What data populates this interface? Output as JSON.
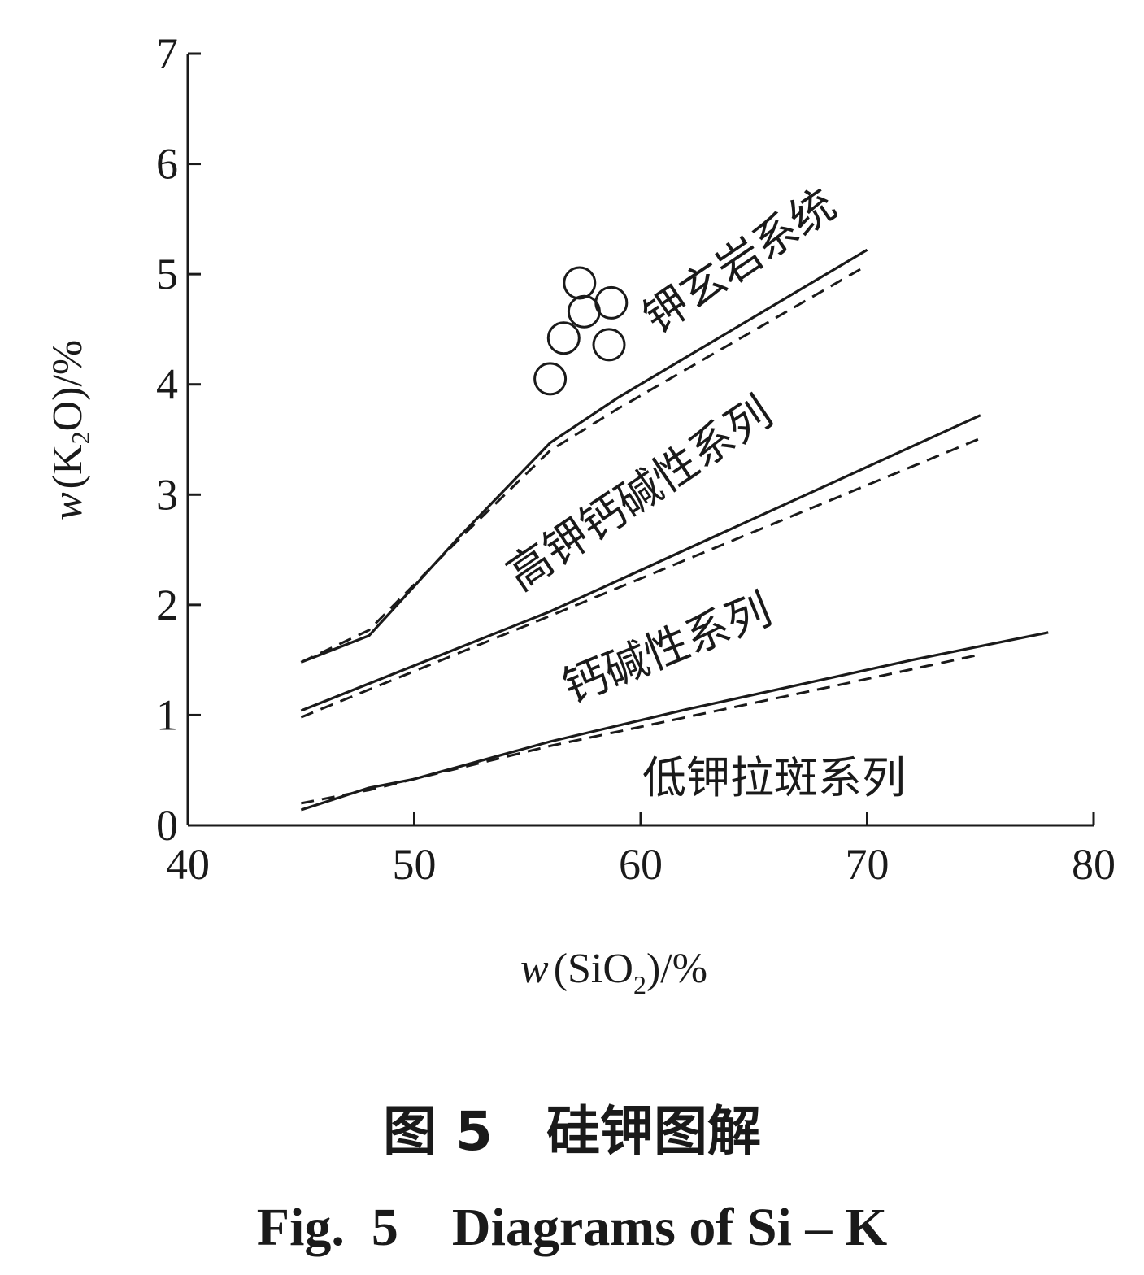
{
  "chart_data": {
    "type": "line",
    "xlabel": "w(SiO2)/%",
    "ylabel": "w(K2O)/%",
    "xlim": [
      40,
      80
    ],
    "ylim": [
      0,
      7
    ],
    "x_ticks": [
      "40",
      "50",
      "60",
      "70",
      "80"
    ],
    "y_ticks": [
      "0",
      "1",
      "2",
      "3",
      "4",
      "5",
      "6",
      "7"
    ],
    "grid": false,
    "boundaries": [
      {
        "solid": [
          [
            45,
            1.48
          ],
          [
            48,
            1.72
          ],
          [
            52,
            2.62
          ],
          [
            56,
            3.47
          ],
          [
            59,
            3.88
          ],
          [
            70,
            5.22
          ]
        ],
        "dashed": [
          [
            45,
            1.48
          ],
          [
            48,
            1.77
          ],
          [
            52,
            2.6
          ],
          [
            56,
            3.4
          ],
          [
            59,
            3.78
          ],
          [
            70,
            5.08
          ]
        ]
      },
      {
        "solid": [
          [
            45,
            1.04
          ],
          [
            56,
            1.94
          ],
          [
            75,
            3.72
          ]
        ],
        "dashed": [
          [
            45,
            0.98
          ],
          [
            56,
            1.9
          ],
          [
            75,
            3.51
          ]
        ]
      },
      {
        "solid": [
          [
            45,
            0.14
          ],
          [
            48,
            0.34
          ],
          [
            50,
            0.42
          ],
          [
            56,
            0.76
          ],
          [
            62,
            1.05
          ],
          [
            72,
            1.5
          ],
          [
            78,
            1.75
          ]
        ],
        "dashed": [
          [
            45,
            0.2
          ],
          [
            48,
            0.32
          ],
          [
            56,
            0.72
          ],
          [
            62,
            0.98
          ],
          [
            68,
            1.24
          ],
          [
            75,
            1.55
          ]
        ]
      }
    ],
    "points": [
      {
        "x": 57.3,
        "y": 4.92
      },
      {
        "x": 58.7,
        "y": 4.74
      },
      {
        "x": 57.5,
        "y": 4.66
      },
      {
        "x": 56.6,
        "y": 4.42
      },
      {
        "x": 58.6,
        "y": 4.36
      },
      {
        "x": 56.0,
        "y": 4.05
      }
    ],
    "region_labels": [
      "钾玄岩系统",
      "高钾钙碱性系列",
      "钙碱性系列",
      "低钾拉斑系列"
    ]
  },
  "axis": {
    "y_prefix": "w",
    "y_open": "(",
    "y_k": "K",
    "y_sub": "2",
    "y_o": "O",
    "y_close": ")/%",
    "x_prefix": "w",
    "x_open": "(",
    "x_si": "SiO",
    "x_sub": "2",
    "x_close": ")/%"
  },
  "caption": {
    "chinese": "图 5　硅钾图解",
    "english": "Fig.  5　Diagrams of Si – K"
  }
}
